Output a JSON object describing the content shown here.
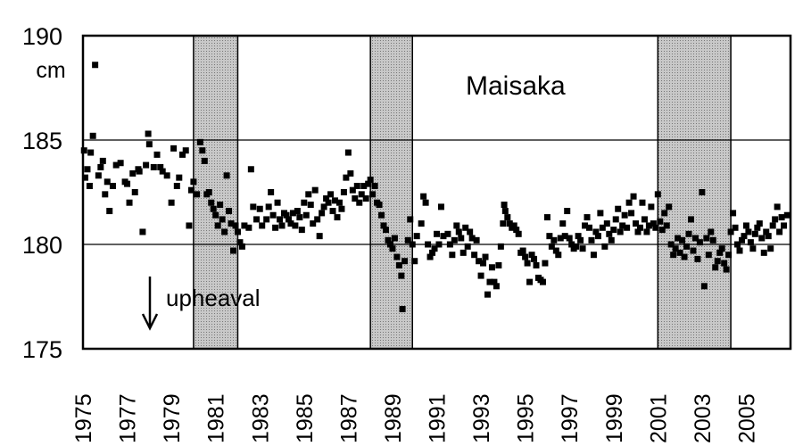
{
  "chart_data": {
    "type": "scatter",
    "title": "Maisaka",
    "ylabel": "cm",
    "xlabel": "",
    "xlim": [
      1975,
      2007
    ],
    "ylim": [
      175,
      190
    ],
    "y_ticks": [
      "175",
      "180",
      "185",
      "190"
    ],
    "x_ticks": [
      "1975",
      "1977",
      "1979",
      "1981",
      "1983",
      "1985",
      "1987",
      "1989",
      "1991",
      "1993",
      "1995",
      "1997",
      "1999",
      "2001",
      "2003",
      "2005"
    ],
    "grid": "horizontal",
    "annotation": {
      "text": "upheaval",
      "arrow": "down"
    },
    "shaded_periods": [
      [
        1980.0,
        1982.0
      ],
      [
        1988.0,
        1989.9
      ],
      [
        2001.0,
        2004.3
      ]
    ],
    "colors": {
      "points": "#000000",
      "shade_fill": "#c8c8c8",
      "grid": "#000000"
    },
    "points": [
      [
        1975.05,
        184.5
      ],
      [
        1975.1,
        183.2
      ],
      [
        1975.2,
        183.6
      ],
      [
        1975.3,
        182.8
      ],
      [
        1975.35,
        184.4
      ],
      [
        1975.45,
        185.2
      ],
      [
        1975.55,
        188.6
      ],
      [
        1975.7,
        183.3
      ],
      [
        1975.8,
        183.7
      ],
      [
        1975.9,
        184.0
      ],
      [
        1976.0,
        182.4
      ],
      [
        1976.1,
        183.0
      ],
      [
        1976.2,
        181.6
      ],
      [
        1976.35,
        182.8
      ],
      [
        1976.5,
        183.8
      ],
      [
        1976.7,
        183.9
      ],
      [
        1976.9,
        183.0
      ],
      [
        1977.0,
        182.9
      ],
      [
        1977.1,
        182.0
      ],
      [
        1977.25,
        183.4
      ],
      [
        1977.35,
        182.5
      ],
      [
        1977.5,
        183.6
      ],
      [
        1977.55,
        183.5
      ],
      [
        1977.7,
        180.6
      ],
      [
        1977.85,
        183.8
      ],
      [
        1977.95,
        185.3
      ],
      [
        1978.0,
        184.8
      ],
      [
        1978.2,
        183.7
      ],
      [
        1978.35,
        184.3
      ],
      [
        1978.5,
        183.7
      ],
      [
        1978.6,
        183.5
      ],
      [
        1978.8,
        183.3
      ],
      [
        1979.0,
        182.0
      ],
      [
        1979.1,
        184.6
      ],
      [
        1979.25,
        182.8
      ],
      [
        1979.35,
        183.2
      ],
      [
        1979.5,
        184.3
      ],
      [
        1979.65,
        184.5
      ],
      [
        1979.8,
        180.9
      ],
      [
        1979.9,
        182.6
      ],
      [
        1980.0,
        183.0
      ],
      [
        1980.15,
        182.4
      ],
      [
        1980.3,
        184.9
      ],
      [
        1980.4,
        184.5
      ],
      [
        1980.5,
        184.0
      ],
      [
        1980.6,
        182.4
      ],
      [
        1980.7,
        182.5
      ],
      [
        1980.8,
        182.0
      ],
      [
        1980.9,
        181.7
      ],
      [
        1981.0,
        181.4
      ],
      [
        1981.1,
        180.9
      ],
      [
        1981.2,
        181.9
      ],
      [
        1981.3,
        181.2
      ],
      [
        1981.4,
        180.6
      ],
      [
        1981.5,
        183.3
      ],
      [
        1981.6,
        181.6
      ],
      [
        1981.7,
        181.0
      ],
      [
        1981.8,
        179.7
      ],
      [
        1981.9,
        180.9
      ],
      [
        1982.0,
        180.6
      ],
      [
        1982.1,
        180.1
      ],
      [
        1982.2,
        179.9
      ],
      [
        1982.3,
        180.9
      ],
      [
        1982.5,
        180.8
      ],
      [
        1982.6,
        183.6
      ],
      [
        1982.7,
        181.8
      ],
      [
        1982.85,
        181.2
      ],
      [
        1983.0,
        181.7
      ],
      [
        1983.1,
        180.9
      ],
      [
        1983.3,
        181.2
      ],
      [
        1983.4,
        181.8
      ],
      [
        1983.5,
        182.5
      ],
      [
        1983.6,
        181.4
      ],
      [
        1983.7,
        180.8
      ],
      [
        1983.8,
        182.0
      ],
      [
        1983.9,
        181.2
      ],
      [
        1984.0,
        180.9
      ],
      [
        1984.1,
        181.5
      ],
      [
        1984.2,
        181.4
      ],
      [
        1984.3,
        181.2
      ],
      [
        1984.4,
        181.0
      ],
      [
        1984.5,
        181.5
      ],
      [
        1984.6,
        180.9
      ],
      [
        1984.7,
        181.6
      ],
      [
        1984.8,
        181.3
      ],
      [
        1984.9,
        180.7
      ],
      [
        1985.0,
        182.0
      ],
      [
        1985.1,
        181.4
      ],
      [
        1985.2,
        182.4
      ],
      [
        1985.3,
        181.9
      ],
      [
        1985.4,
        181.0
      ],
      [
        1985.5,
        182.6
      ],
      [
        1985.6,
        181.2
      ],
      [
        1985.7,
        180.4
      ],
      [
        1985.8,
        181.5
      ],
      [
        1985.9,
        181.8
      ],
      [
        1986.0,
        182.2
      ],
      [
        1986.1,
        182.0
      ],
      [
        1986.2,
        182.4
      ],
      [
        1986.3,
        181.6
      ],
      [
        1986.4,
        182.1
      ],
      [
        1986.5,
        181.3
      ],
      [
        1986.6,
        182.0
      ],
      [
        1986.7,
        181.7
      ],
      [
        1986.8,
        182.5
      ],
      [
        1986.9,
        183.2
      ],
      [
        1987.0,
        184.4
      ],
      [
        1987.1,
        183.4
      ],
      [
        1987.2,
        182.6
      ],
      [
        1987.3,
        182.2
      ],
      [
        1987.4,
        182.8
      ],
      [
        1987.5,
        182.0
      ],
      [
        1987.6,
        182.4
      ],
      [
        1987.7,
        182.8
      ],
      [
        1987.8,
        182.2
      ],
      [
        1987.9,
        182.9
      ],
      [
        1988.0,
        183.1
      ],
      [
        1988.1,
        182.4
      ],
      [
        1988.2,
        182.8
      ],
      [
        1988.3,
        182.0
      ],
      [
        1988.4,
        181.9
      ],
      [
        1988.5,
        181.4
      ],
      [
        1988.6,
        180.9
      ],
      [
        1988.7,
        180.7
      ],
      [
        1988.8,
        180.2
      ],
      [
        1988.9,
        180.0
      ],
      [
        1989.0,
        179.8
      ],
      [
        1989.1,
        180.3
      ],
      [
        1989.2,
        179.4
      ],
      [
        1989.3,
        179.0
      ],
      [
        1989.4,
        178.5
      ],
      [
        1989.45,
        176.9
      ],
      [
        1989.55,
        179.2
      ],
      [
        1989.7,
        180.2
      ],
      [
        1989.8,
        181.2
      ],
      [
        1989.9,
        180.0
      ],
      [
        1990.0,
        179.2
      ],
      [
        1990.1,
        180.4
      ],
      [
        1990.3,
        181.0
      ],
      [
        1990.4,
        182.3
      ],
      [
        1990.5,
        182.0
      ],
      [
        1990.6,
        180.0
      ],
      [
        1990.7,
        179.4
      ],
      [
        1990.8,
        179.6
      ],
      [
        1990.9,
        179.8
      ],
      [
        1991.0,
        180.5
      ],
      [
        1991.1,
        180.0
      ],
      [
        1991.2,
        181.8
      ],
      [
        1991.3,
        180.4
      ],
      [
        1991.5,
        180.5
      ],
      [
        1991.6,
        180.0
      ],
      [
        1991.7,
        179.5
      ],
      [
        1991.8,
        180.2
      ],
      [
        1991.9,
        180.9
      ],
      [
        1992.0,
        180.6
      ],
      [
        1992.1,
        180.3
      ],
      [
        1992.2,
        179.6
      ],
      [
        1992.3,
        180.8
      ],
      [
        1992.4,
        179.9
      ],
      [
        1992.5,
        180.6
      ],
      [
        1992.6,
        180.3
      ],
      [
        1992.7,
        179.5
      ],
      [
        1992.8,
        180.2
      ],
      [
        1992.9,
        179.2
      ],
      [
        1993.0,
        178.5
      ],
      [
        1993.1,
        179.1
      ],
      [
        1993.2,
        179.4
      ],
      [
        1993.3,
        177.6
      ],
      [
        1993.4,
        178.2
      ],
      [
        1993.5,
        178.9
      ],
      [
        1993.6,
        178.2
      ],
      [
        1993.7,
        178.0
      ],
      [
        1993.8,
        179.0
      ],
      [
        1993.9,
        179.9
      ],
      [
        1994.0,
        181.0
      ],
      [
        1994.05,
        181.9
      ],
      [
        1994.1,
        181.6
      ],
      [
        1994.2,
        181.3
      ],
      [
        1994.3,
        181.0
      ],
      [
        1994.4,
        180.8
      ],
      [
        1994.5,
        180.9
      ],
      [
        1994.6,
        180.7
      ],
      [
        1994.7,
        180.5
      ],
      [
        1994.8,
        179.6
      ],
      [
        1994.9,
        179.7
      ],
      [
        1995.0,
        179.4
      ],
      [
        1995.1,
        179.1
      ],
      [
        1995.2,
        178.2
      ],
      [
        1995.3,
        179.5
      ],
      [
        1995.4,
        179.3
      ],
      [
        1995.5,
        179.0
      ],
      [
        1995.6,
        178.4
      ],
      [
        1995.7,
        178.3
      ],
      [
        1995.8,
        178.2
      ],
      [
        1995.9,
        179.1
      ],
      [
        1996.0,
        181.3
      ],
      [
        1996.1,
        180.4
      ],
      [
        1996.2,
        179.9
      ],
      [
        1996.3,
        180.2
      ],
      [
        1996.4,
        179.7
      ],
      [
        1996.5,
        179.5
      ],
      [
        1996.6,
        180.3
      ],
      [
        1996.7,
        181.0
      ],
      [
        1996.8,
        180.4
      ],
      [
        1996.9,
        181.6
      ],
      [
        1997.0,
        180.3
      ],
      [
        1997.1,
        180.0
      ],
      [
        1997.2,
        179.8
      ],
      [
        1997.3,
        179.9
      ],
      [
        1997.4,
        180.4
      ],
      [
        1997.5,
        180.2
      ],
      [
        1997.6,
        179.8
      ],
      [
        1997.7,
        180.9
      ],
      [
        1997.8,
        181.3
      ],
      [
        1997.9,
        180.8
      ],
      [
        1998.0,
        180.2
      ],
      [
        1998.1,
        179.5
      ],
      [
        1998.2,
        180.6
      ],
      [
        1998.3,
        180.4
      ],
      [
        1998.4,
        181.5
      ],
      [
        1998.5,
        180.8
      ],
      [
        1998.6,
        179.9
      ],
      [
        1998.7,
        181.0
      ],
      [
        1998.8,
        180.5
      ],
      [
        1998.9,
        180.2
      ],
      [
        1999.0,
        180.7
      ],
      [
        1999.1,
        181.2
      ],
      [
        1999.2,
        181.7
      ],
      [
        1999.3,
        180.6
      ],
      [
        1999.4,
        180.9
      ],
      [
        1999.5,
        181.4
      ],
      [
        1999.6,
        180.8
      ],
      [
        1999.7,
        182.0
      ],
      [
        1999.8,
        181.5
      ],
      [
        1999.9,
        182.3
      ],
      [
        2000.0,
        181.0
      ],
      [
        2000.1,
        180.6
      ],
      [
        2000.2,
        180.8
      ],
      [
        2000.3,
        182.0
      ],
      [
        2000.4,
        181.2
      ],
      [
        2000.5,
        180.6
      ],
      [
        2000.6,
        180.9
      ],
      [
        2000.7,
        181.8
      ],
      [
        2000.8,
        181.0
      ],
      [
        2000.9,
        180.8
      ],
      [
        2001.0,
        182.4
      ],
      [
        2001.1,
        181.1
      ],
      [
        2001.2,
        180.7
      ],
      [
        2001.3,
        181.5
      ],
      [
        2001.4,
        180.9
      ],
      [
        2001.5,
        181.8
      ],
      [
        2001.6,
        180.0
      ],
      [
        2001.7,
        179.5
      ],
      [
        2001.8,
        179.8
      ],
      [
        2001.9,
        180.3
      ],
      [
        2002.0,
        179.6
      ],
      [
        2002.1,
        180.2
      ],
      [
        2002.2,
        179.4
      ],
      [
        2002.3,
        179.9
      ],
      [
        2002.4,
        180.5
      ],
      [
        2002.5,
        181.2
      ],
      [
        2002.6,
        179.7
      ],
      [
        2002.7,
        180.3
      ],
      [
        2002.8,
        179.3
      ],
      [
        2002.9,
        180.1
      ],
      [
        2003.0,
        182.5
      ],
      [
        2003.1,
        178.0
      ],
      [
        2003.2,
        180.3
      ],
      [
        2003.3,
        179.5
      ],
      [
        2003.4,
        180.6
      ],
      [
        2003.5,
        180.2
      ],
      [
        2003.6,
        178.9
      ],
      [
        2003.7,
        179.2
      ],
      [
        2003.8,
        179.6
      ],
      [
        2003.9,
        179.8
      ],
      [
        2004.0,
        179.1
      ],
      [
        2004.1,
        178.8
      ],
      [
        2004.2,
        179.5
      ],
      [
        2004.3,
        180.6
      ],
      [
        2004.4,
        181.5
      ],
      [
        2004.5,
        180.8
      ],
      [
        2004.6,
        180.0
      ],
      [
        2004.7,
        179.7
      ],
      [
        2004.8,
        180.2
      ],
      [
        2004.9,
        180.4
      ],
      [
        2005.0,
        180.9
      ],
      [
        2005.1,
        180.6
      ],
      [
        2005.2,
        180.1
      ],
      [
        2005.3,
        179.8
      ],
      [
        2005.4,
        180.5
      ],
      [
        2005.5,
        180.8
      ],
      [
        2005.6,
        181.0
      ],
      [
        2005.7,
        180.3
      ],
      [
        2005.8,
        179.6
      ],
      [
        2005.9,
        180.6
      ],
      [
        2006.0,
        180.4
      ],
      [
        2006.1,
        179.8
      ],
      [
        2006.2,
        180.9
      ],
      [
        2006.3,
        181.2
      ],
      [
        2006.4,
        181.8
      ],
      [
        2006.5,
        180.6
      ],
      [
        2006.6,
        181.3
      ],
      [
        2006.7,
        180.9
      ],
      [
        2006.85,
        181.4
      ]
    ]
  }
}
